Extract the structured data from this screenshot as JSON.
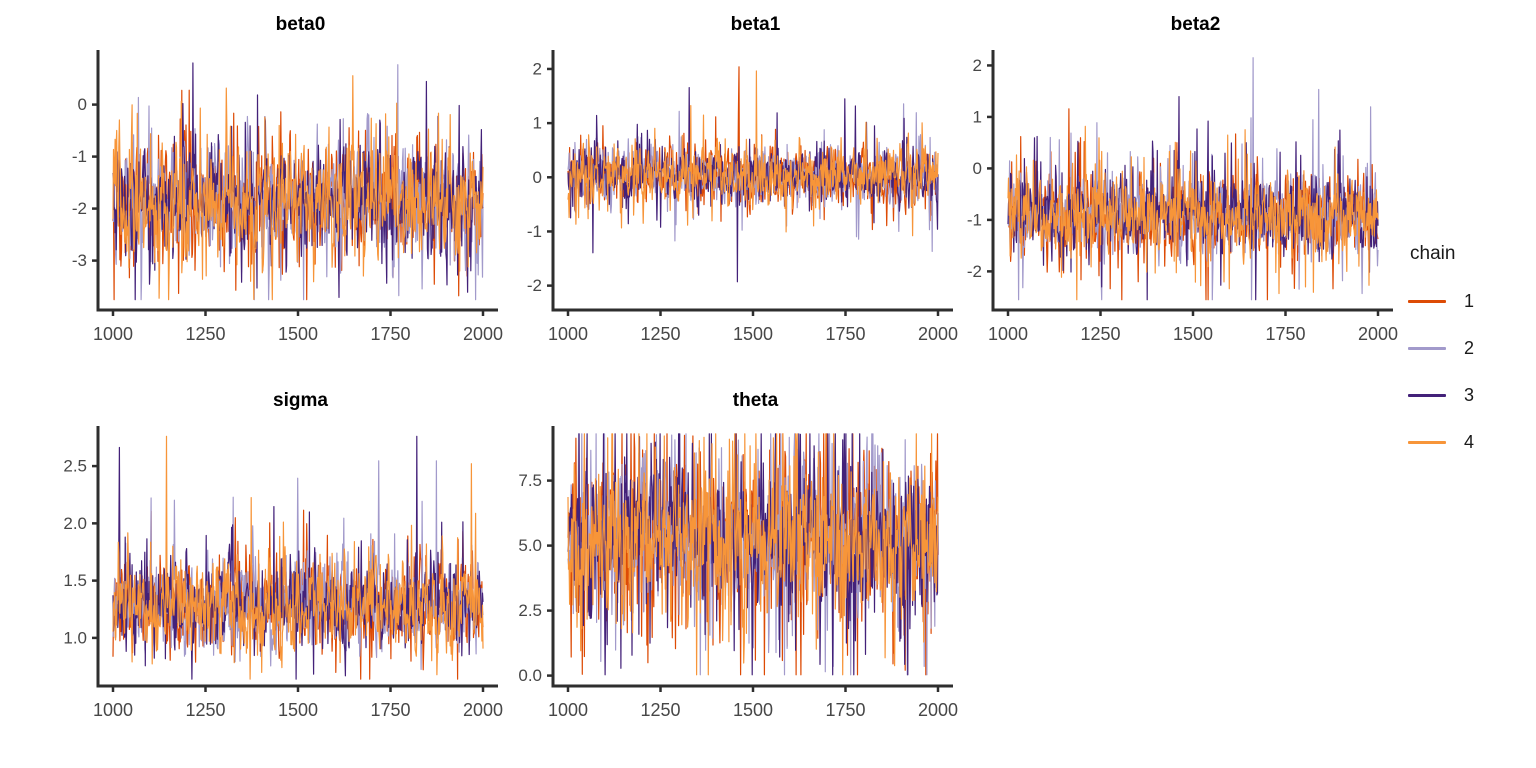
{
  "figure": {
    "background": "#FFFFFF",
    "axis_color": "#2E2E2E",
    "tick_label_color": "#474747",
    "title_color": "#000000",
    "description": "MCMC trace plots of posterior draws, iterations 1000-2000, 4 chains"
  },
  "legend": {
    "title": "chain",
    "position": "right-center",
    "entries": [
      {
        "label": "1",
        "color": "#DD4B05",
        "seed": 11
      },
      {
        "label": "2",
        "color": "#A29ACB",
        "seed": 23
      },
      {
        "label": "3",
        "color": "#432179",
        "seed": 37
      },
      {
        "label": "4",
        "color": "#F79539",
        "seed": 51
      }
    ]
  },
  "chart_data": [
    {
      "type": "line",
      "kind": "mcmc_trace",
      "title": "beta0",
      "xlabel": "",
      "ylabel": "",
      "grid": false,
      "x": {
        "min": 1000,
        "max": 2000,
        "tick_values": [
          1000,
          1250,
          1500,
          1750,
          2000
        ],
        "tick_labels": [
          "1000",
          "1250",
          "1500",
          "1750",
          "2000"
        ]
      },
      "y": {
        "min": -3.95,
        "max": 1.05,
        "tick_values": [
          0,
          -1,
          -2,
          -3
        ],
        "tick_labels": [
          "0",
          "-1",
          "-2",
          "-3"
        ]
      },
      "series": [
        "1",
        "2",
        "3",
        "4"
      ],
      "seed_base": 101,
      "trace": {
        "n": 700,
        "mean": -1.85,
        "sd": 0.55,
        "phi": 0.35,
        "spike_prob": 0.05,
        "spike_scale": 1.9,
        "spike_up_frac": 0.5,
        "clip": [
          -3.75,
          0.8
        ]
      }
    },
    {
      "type": "line",
      "kind": "mcmc_trace",
      "title": "beta1",
      "xlabel": "",
      "ylabel": "",
      "grid": false,
      "x": {
        "min": 1000,
        "max": 2000,
        "tick_values": [
          1000,
          1250,
          1500,
          1750,
          2000
        ],
        "tick_labels": [
          "1000",
          "1250",
          "1500",
          "1750",
          "2000"
        ]
      },
      "y": {
        "min": -2.45,
        "max": 2.35,
        "tick_values": [
          2,
          1,
          0,
          -1,
          -2
        ],
        "tick_labels": [
          "2",
          "1",
          "0",
          "-1",
          "-2"
        ]
      },
      "series": [
        "1",
        "2",
        "3",
        "4"
      ],
      "seed_base": 202,
      "trace": {
        "n": 700,
        "mean": 0.02,
        "sd": 0.26,
        "phi": 0.3,
        "spike_prob": 0.06,
        "spike_scale": 2.3,
        "spike_up_frac": 0.5,
        "clip": [
          -2.25,
          2.2
        ]
      }
    },
    {
      "type": "line",
      "kind": "mcmc_trace",
      "title": "beta2",
      "xlabel": "",
      "ylabel": "",
      "grid": false,
      "x": {
        "min": 1000,
        "max": 2000,
        "tick_values": [
          1000,
          1250,
          1500,
          1750,
          2000
        ],
        "tick_labels": [
          "1000",
          "1250",
          "1500",
          "1750",
          "2000"
        ]
      },
      "y": {
        "min": -2.75,
        "max": 2.3,
        "tick_values": [
          2,
          1,
          0,
          -1,
          -2
        ],
        "tick_labels": [
          "2",
          "1",
          "0",
          "-1",
          "-2"
        ]
      },
      "series": [
        "1",
        "2",
        "3",
        "4"
      ],
      "seed_base": 303,
      "trace": {
        "n": 700,
        "mean": -0.9,
        "sd": 0.38,
        "phi": 0.3,
        "spike_prob": 0.06,
        "spike_scale": 2.4,
        "spike_up_frac": 0.68,
        "clip": [
          -2.55,
          2.15
        ]
      }
    },
    {
      "type": "line",
      "kind": "mcmc_trace",
      "title": "sigma",
      "xlabel": "",
      "ylabel": "",
      "grid": false,
      "x": {
        "min": 1000,
        "max": 2000,
        "tick_values": [
          1000,
          1250,
          1500,
          1750,
          2000
        ],
        "tick_labels": [
          "1000",
          "1250",
          "1500",
          "1750",
          "2000"
        ]
      },
      "y": {
        "min": 0.58,
        "max": 2.85,
        "tick_values": [
          2.5,
          2.0,
          1.5,
          1.0
        ],
        "tick_labels": [
          "2.5",
          "2.0",
          "1.5",
          "1.0"
        ]
      },
      "series": [
        "1",
        "2",
        "3",
        "4"
      ],
      "seed_base": 404,
      "trace": {
        "n": 700,
        "mean": 1.27,
        "sd": 0.19,
        "phi": 0.35,
        "spike_prob": 0.05,
        "spike_scale": 2.4,
        "spike_up_frac": 0.85,
        "clip": [
          0.64,
          2.76
        ]
      }
    },
    {
      "type": "line",
      "kind": "mcmc_trace",
      "title": "theta",
      "xlabel": "",
      "ylabel": "",
      "grid": false,
      "x": {
        "min": 1000,
        "max": 2000,
        "tick_values": [
          1000,
          1250,
          1500,
          1750,
          2000
        ],
        "tick_labels": [
          "1000",
          "1250",
          "1500",
          "1750",
          "2000"
        ]
      },
      "y": {
        "min": -0.4,
        "max": 9.6,
        "tick_values": [
          7.5,
          5.0,
          2.5,
          0.0
        ],
        "tick_labels": [
          "7.5",
          "5.0",
          "2.5",
          "0.0"
        ]
      },
      "series": [
        "1",
        "2",
        "3",
        "4"
      ],
      "seed_base": 505,
      "trace": {
        "n": 700,
        "mean": 5.3,
        "sd": 1.35,
        "phi": 0.25,
        "spike_prob": 0.12,
        "spike_scale": 2.1,
        "spike_up_frac": 0.5,
        "clip": [
          0.03,
          9.3
        ]
      }
    }
  ]
}
